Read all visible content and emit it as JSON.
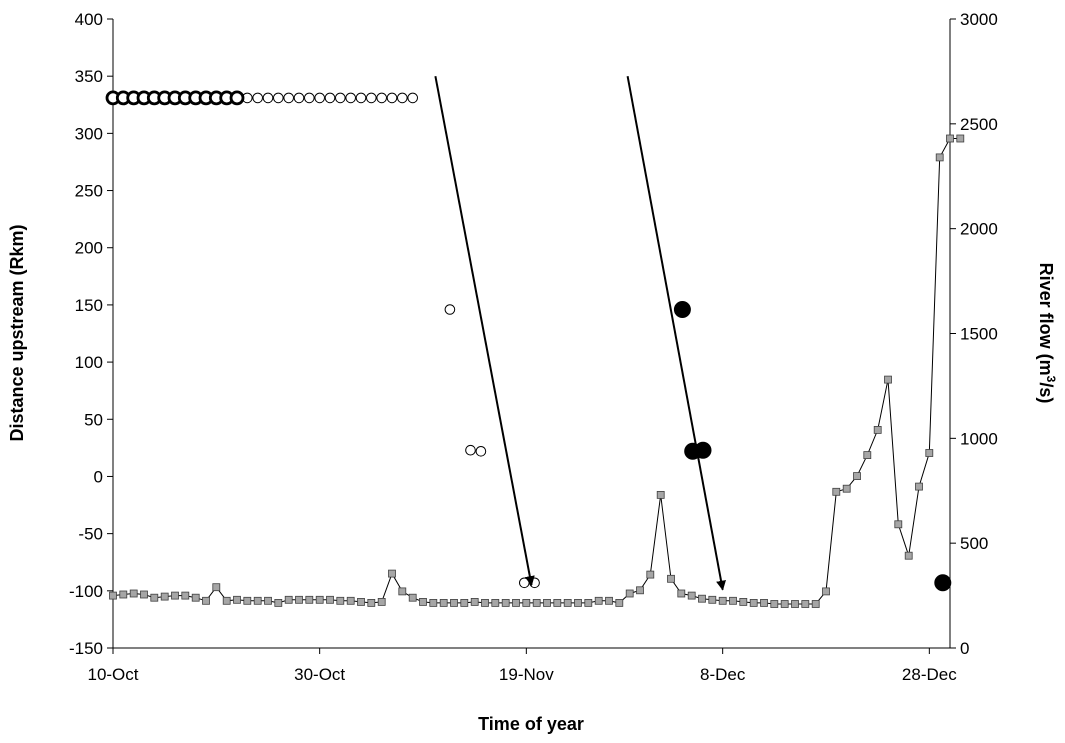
{
  "chart_data": {
    "type": "scatter",
    "title": "",
    "xlabel": "Time of year",
    "ylabel_left": "Distance upstream (Rkm)",
    "ylabel_right_prefix": "River flow (m",
    "ylabel_right_sup": "3",
    "ylabel_right_suffix": "/s)",
    "x_origin": "10-Oct",
    "xlim_days": [
      0,
      81
    ],
    "x_ticks": [
      {
        "day": 0,
        "label": "10-Oct"
      },
      {
        "day": 20,
        "label": "30-Oct"
      },
      {
        "day": 40,
        "label": "19-Nov"
      },
      {
        "day": 59,
        "label": "8-Dec"
      },
      {
        "day": 79,
        "label": "28-Dec"
      }
    ],
    "ylim_left": [
      -150,
      400
    ],
    "y_ticks_left": [
      -150,
      -100,
      -50,
      0,
      50,
      100,
      150,
      200,
      250,
      300,
      350,
      400
    ],
    "ylim_right": [
      0,
      3000
    ],
    "y_ticks_right": [
      0,
      500,
      1000,
      1500,
      2000,
      2500,
      3000
    ],
    "grid": false,
    "legend": "none",
    "colors": {
      "flow_marker": "#a6a6a6",
      "flow_line": "#000000",
      "axes": "#000000"
    },
    "series": [
      {
        "kind": "open-thick",
        "axis": "left",
        "points": [
          [
            0,
            331
          ],
          [
            1,
            331
          ],
          [
            2,
            331
          ],
          [
            3,
            331
          ],
          [
            4,
            331
          ],
          [
            5,
            331
          ],
          [
            6,
            331
          ],
          [
            7,
            331
          ],
          [
            8,
            331
          ],
          [
            9,
            331
          ],
          [
            10,
            331
          ],
          [
            11,
            331
          ],
          [
            12,
            331
          ]
        ]
      },
      {
        "kind": "open-thin",
        "axis": "left",
        "points": [
          [
            13,
            331
          ],
          [
            14,
            331
          ],
          [
            15,
            331
          ],
          [
            16,
            331
          ],
          [
            17,
            331
          ],
          [
            18,
            331
          ],
          [
            19,
            331
          ],
          [
            20,
            331
          ],
          [
            21,
            331
          ],
          [
            22,
            331
          ],
          [
            23,
            331
          ],
          [
            24,
            331
          ],
          [
            25,
            331
          ],
          [
            26,
            331
          ],
          [
            27,
            331
          ],
          [
            28,
            331
          ],
          [
            29,
            331
          ],
          [
            32.6,
            146
          ],
          [
            34.6,
            23
          ],
          [
            35.6,
            22
          ],
          [
            39.8,
            -93
          ],
          [
            40.8,
            -93
          ]
        ]
      },
      {
        "kind": "filled",
        "axis": "left",
        "points": [
          [
            55.1,
            146
          ],
          [
            56.1,
            22
          ],
          [
            57.1,
            23
          ],
          [
            80.3,
            -93
          ]
        ]
      },
      {
        "kind": "flow",
        "axis": "right",
        "values": [
          250,
          255,
          260,
          255,
          240,
          245,
          250,
          250,
          240,
          225,
          290,
          225,
          230,
          225,
          225,
          225,
          215,
          230,
          230,
          230,
          230,
          230,
          225,
          225,
          220,
          215,
          220,
          355,
          270,
          240,
          220,
          215,
          215,
          215,
          215,
          220,
          215,
          215,
          215,
          215,
          215,
          215,
          215,
          215,
          215,
          215,
          215,
          225,
          225,
          215,
          260,
          275,
          350,
          730,
          330,
          260,
          250,
          235,
          230,
          225,
          225,
          220,
          215,
          215,
          210,
          210,
          210,
          210,
          210,
          270,
          745,
          760,
          820,
          920,
          1040,
          1280,
          590,
          440,
          770,
          930,
          2340,
          2430,
          2430
        ]
      }
    ],
    "arrows": [
      {
        "from": [
          31.2,
          350
        ],
        "to": [
          40.5,
          -95
        ]
      },
      {
        "from": [
          49.8,
          350
        ],
        "to": [
          59,
          -99
        ]
      }
    ]
  }
}
